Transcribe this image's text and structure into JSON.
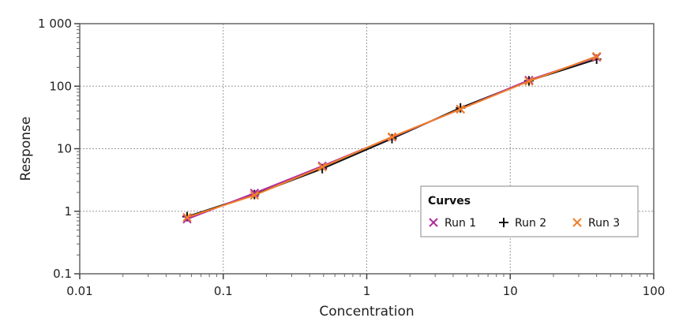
{
  "chart_data": {
    "type": "line",
    "xlabel": "Concentration",
    "ylabel": "Response",
    "xscale": "log",
    "yscale": "log",
    "xlim": [
      0.01,
      100
    ],
    "ylim": [
      0.1,
      1000
    ],
    "x_ticks": [
      0.01,
      0.1,
      1,
      10,
      100
    ],
    "x_tick_labels": [
      "0.01",
      "0.1",
      "1",
      "10",
      "100"
    ],
    "y_ticks": [
      0.1,
      1,
      10,
      100,
      1000
    ],
    "y_tick_labels": [
      "0.1",
      "1",
      "10",
      "100",
      "1 000"
    ],
    "grid": true,
    "legend_title": "Curves",
    "legend_position": "lower-right",
    "series": [
      {
        "name": "Run 1",
        "color": "#b22d9c",
        "marker": "x",
        "x": [
          0.056,
          0.165,
          0.49,
          1.5,
          4.5,
          13.5,
          40
        ],
        "y": [
          0.75,
          1.95,
          5.3,
          15.3,
          43,
          125,
          290
        ]
      },
      {
        "name": "Run 2",
        "color": "#111111",
        "marker": "+",
        "x": [
          0.056,
          0.165,
          0.49,
          1.5,
          4.5,
          13.5,
          40
        ],
        "y": [
          0.82,
          1.85,
          4.8,
          14.5,
          45,
          122,
          270
        ]
      },
      {
        "name": "Run 3",
        "color": "#f07f2a",
        "marker": "x",
        "x": [
          0.056,
          0.165,
          0.49,
          1.5,
          4.5,
          13.5,
          40
        ],
        "y": [
          0.8,
          1.8,
          5.1,
          15.5,
          43,
          120,
          300
        ]
      }
    ]
  }
}
